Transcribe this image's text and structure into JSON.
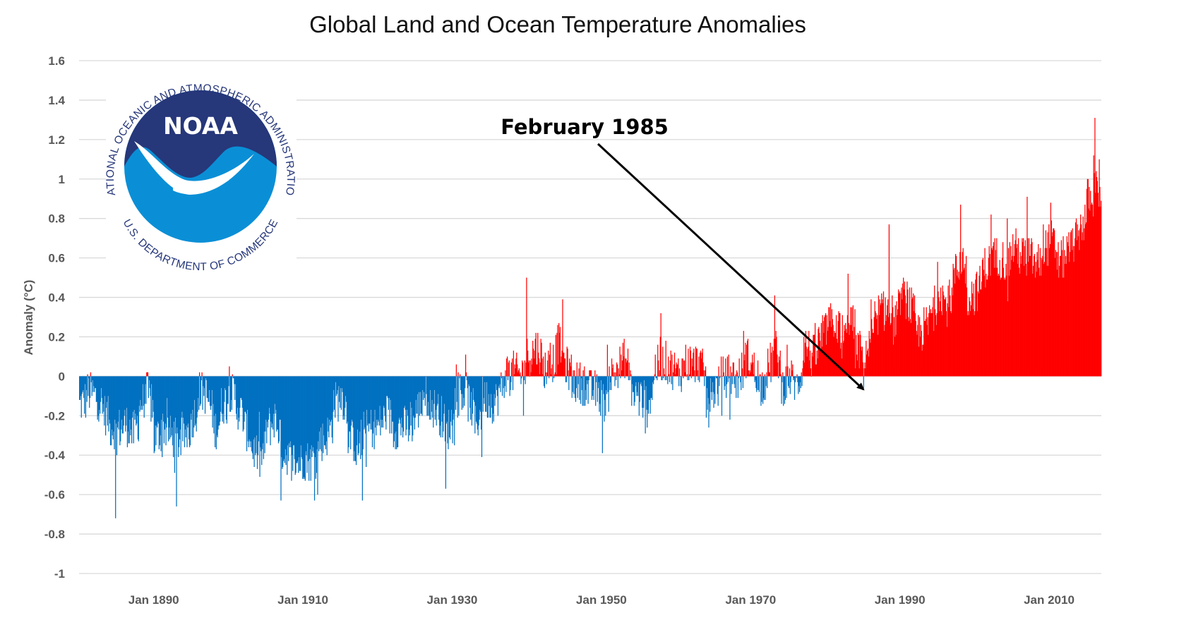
{
  "chart_data": {
    "type": "bar",
    "title": "Global Land and Ocean Temperature Anomalies",
    "ylabel": "Anomaly (°C)",
    "xlabel": "",
    "ylim": [
      -1,
      1.6
    ],
    "xlim": [
      "Jan 1880",
      "Dec 2016"
    ],
    "y_ticks": [
      "1.6",
      "1.4",
      "1.2",
      "1",
      "0.8",
      "0.6",
      "0.4",
      "0.2",
      "0",
      "-0.2",
      "-0.4",
      "-0.6",
      "-0.8",
      "-1"
    ],
    "x_ticks": [
      "Jan 1890",
      "Jan 1910",
      "Jan 1930",
      "Jan 1950",
      "Jan 1970",
      "Jan 1990",
      "Jan 2010"
    ],
    "grid": "horizontal",
    "frequency": "monthly",
    "colors": {
      "positive": "#ff0000",
      "negative": "#0070c0"
    },
    "annotation": {
      "text": "February 1985",
      "target_date": "1985-02",
      "target_value": -0.06
    },
    "series": [
      {
        "name": "",
        "monthly_start": "1880-01",
        "annual_mean_values": [
          {
            "year": 1880,
            "value": -0.15
          },
          {
            "year": 1881,
            "value": -0.08
          },
          {
            "year": 1882,
            "value": -0.1
          },
          {
            "year": 1883,
            "value": -0.17
          },
          {
            "year": 1884,
            "value": -0.26
          },
          {
            "year": 1885,
            "value": -0.27
          },
          {
            "year": 1886,
            "value": -0.24
          },
          {
            "year": 1887,
            "value": -0.3
          },
          {
            "year": 1888,
            "value": -0.15
          },
          {
            "year": 1889,
            "value": -0.07
          },
          {
            "year": 1890,
            "value": -0.32
          },
          {
            "year": 1891,
            "value": -0.25
          },
          {
            "year": 1892,
            "value": -0.3
          },
          {
            "year": 1893,
            "value": -0.33
          },
          {
            "year": 1894,
            "value": -0.3
          },
          {
            "year": 1895,
            "value": -0.22
          },
          {
            "year": 1896,
            "value": -0.08
          },
          {
            "year": 1897,
            "value": -0.1
          },
          {
            "year": 1898,
            "value": -0.28
          },
          {
            "year": 1899,
            "value": -0.15
          },
          {
            "year": 1900,
            "value": -0.07
          },
          {
            "year": 1901,
            "value": -0.15
          },
          {
            "year": 1902,
            "value": -0.25
          },
          {
            "year": 1903,
            "value": -0.36
          },
          {
            "year": 1904,
            "value": -0.44
          },
          {
            "year": 1905,
            "value": -0.27
          },
          {
            "year": 1906,
            "value": -0.2
          },
          {
            "year": 1907,
            "value": -0.38
          },
          {
            "year": 1908,
            "value": -0.41
          },
          {
            "year": 1909,
            "value": -0.44
          },
          {
            "year": 1910,
            "value": -0.42
          },
          {
            "year": 1911,
            "value": -0.43
          },
          {
            "year": 1912,
            "value": -0.33
          },
          {
            "year": 1913,
            "value": -0.32
          },
          {
            "year": 1914,
            "value": -0.14
          },
          {
            "year": 1915,
            "value": -0.08
          },
          {
            "year": 1916,
            "value": -0.3
          },
          {
            "year": 1917,
            "value": -0.38
          },
          {
            "year": 1918,
            "value": -0.28
          },
          {
            "year": 1919,
            "value": -0.26
          },
          {
            "year": 1920,
            "value": -0.25
          },
          {
            "year": 1921,
            "value": -0.18
          },
          {
            "year": 1922,
            "value": -0.27
          },
          {
            "year": 1923,
            "value": -0.25
          },
          {
            "year": 1924,
            "value": -0.26
          },
          {
            "year": 1925,
            "value": -0.19
          },
          {
            "year": 1926,
            "value": -0.08
          },
          {
            "year": 1927,
            "value": -0.16
          },
          {
            "year": 1928,
            "value": -0.17
          },
          {
            "year": 1929,
            "value": -0.31
          },
          {
            "year": 1930,
            "value": -0.12
          },
          {
            "year": 1931,
            "value": -0.07
          },
          {
            "year": 1932,
            "value": -0.12
          },
          {
            "year": 1933,
            "value": -0.25
          },
          {
            "year": 1934,
            "value": -0.1
          },
          {
            "year": 1935,
            "value": -0.14
          },
          {
            "year": 1936,
            "value": -0.1
          },
          {
            "year": 1937,
            "value": 0.02
          },
          {
            "year": 1938,
            "value": 0.02
          },
          {
            "year": 1939,
            "value": 0.0
          },
          {
            "year": 1940,
            "value": 0.1
          },
          {
            "year": 1941,
            "value": 0.16
          },
          {
            "year": 1942,
            "value": 0.04
          },
          {
            "year": 1943,
            "value": 0.05
          },
          {
            "year": 1944,
            "value": 0.18
          },
          {
            "year": 1945,
            "value": 0.06
          },
          {
            "year": 1946,
            "value": -0.03
          },
          {
            "year": 1947,
            "value": -0.03
          },
          {
            "year": 1948,
            "value": -0.07
          },
          {
            "year": 1949,
            "value": -0.07
          },
          {
            "year": 1950,
            "value": -0.15
          },
          {
            "year": 1951,
            "value": 0.0
          },
          {
            "year": 1952,
            "value": 0.04
          },
          {
            "year": 1953,
            "value": 0.1
          },
          {
            "year": 1954,
            "value": -0.09
          },
          {
            "year": 1955,
            "value": -0.11
          },
          {
            "year": 1956,
            "value": -0.16
          },
          {
            "year": 1957,
            "value": 0.04
          },
          {
            "year": 1958,
            "value": 0.08
          },
          {
            "year": 1959,
            "value": 0.05
          },
          {
            "year": 1960,
            "value": 0.01
          },
          {
            "year": 1961,
            "value": 0.07
          },
          {
            "year": 1962,
            "value": 0.06
          },
          {
            "year": 1963,
            "value": 0.08
          },
          {
            "year": 1964,
            "value": -0.12
          },
          {
            "year": 1965,
            "value": -0.07
          },
          {
            "year": 1966,
            "value": -0.01
          },
          {
            "year": 1967,
            "value": 0.01
          },
          {
            "year": 1968,
            "value": -0.03
          },
          {
            "year": 1969,
            "value": 0.11
          },
          {
            "year": 1970,
            "value": 0.06
          },
          {
            "year": 1971,
            "value": -0.06
          },
          {
            "year": 1972,
            "value": 0.02
          },
          {
            "year": 1973,
            "value": 0.16
          },
          {
            "year": 1974,
            "value": -0.05
          },
          {
            "year": 1975,
            "value": 0.0
          },
          {
            "year": 1976,
            "value": -0.07
          },
          {
            "year": 1977,
            "value": 0.17
          },
          {
            "year": 1978,
            "value": 0.09
          },
          {
            "year": 1979,
            "value": 0.17
          },
          {
            "year": 1980,
            "value": 0.25
          },
          {
            "year": 1981,
            "value": 0.3
          },
          {
            "year": 1982,
            "value": 0.15
          },
          {
            "year": 1983,
            "value": 0.31
          },
          {
            "year": 1984,
            "value": 0.14
          },
          {
            "year": 1985,
            "value": 0.12
          },
          {
            "year": 1986,
            "value": 0.19
          },
          {
            "year": 1987,
            "value": 0.32
          },
          {
            "year": 1988,
            "value": 0.35
          },
          {
            "year": 1989,
            "value": 0.26
          },
          {
            "year": 1990,
            "value": 0.41
          },
          {
            "year": 1991,
            "value": 0.38
          },
          {
            "year": 1992,
            "value": 0.22
          },
          {
            "year": 1993,
            "value": 0.24
          },
          {
            "year": 1994,
            "value": 0.31
          },
          {
            "year": 1995,
            "value": 0.45
          },
          {
            "year": 1996,
            "value": 0.34
          },
          {
            "year": 1997,
            "value": 0.5
          },
          {
            "year": 1998,
            "value": 0.63
          },
          {
            "year": 1999,
            "value": 0.41
          },
          {
            "year": 2000,
            "value": 0.42
          },
          {
            "year": 2001,
            "value": 0.54
          },
          {
            "year": 2002,
            "value": 0.6
          },
          {
            "year": 2003,
            "value": 0.61
          },
          {
            "year": 2004,
            "value": 0.57
          },
          {
            "year": 2005,
            "value": 0.66
          },
          {
            "year": 2006,
            "value": 0.61
          },
          {
            "year": 2007,
            "value": 0.62
          },
          {
            "year": 2008,
            "value": 0.55
          },
          {
            "year": 2009,
            "value": 0.64
          },
          {
            "year": 2010,
            "value": 0.7
          },
          {
            "year": 2011,
            "value": 0.58
          },
          {
            "year": 2012,
            "value": 0.62
          },
          {
            "year": 2013,
            "value": 0.67
          },
          {
            "year": 2014,
            "value": 0.74
          },
          {
            "year": 2015,
            "value": 0.9
          },
          {
            "year": 2016,
            "value": 0.94
          }
        ],
        "notable_months": [
          {
            "date": "1884-11",
            "value": -0.72
          },
          {
            "date": "1893-01",
            "value": -0.66
          },
          {
            "date": "1907-01",
            "value": -0.63
          },
          {
            "date": "1911-12",
            "value": -0.6
          },
          {
            "date": "1917-12",
            "value": -0.63
          },
          {
            "date": "1929-02",
            "value": -0.57
          },
          {
            "date": "1933-12",
            "value": -0.41
          },
          {
            "date": "1939-12",
            "value": 0.5
          },
          {
            "date": "1944-10",
            "value": 0.39
          },
          {
            "date": "1950-02",
            "value": -0.39
          },
          {
            "date": "1957-12",
            "value": 0.32
          },
          {
            "date": "1973-03",
            "value": 0.41
          },
          {
            "date": "1983-01",
            "value": 0.52
          },
          {
            "date": "1985-02",
            "value": -0.06
          },
          {
            "date": "1988-07",
            "value": 0.77
          },
          {
            "date": "1998-02",
            "value": 0.87
          },
          {
            "date": "2002-03",
            "value": 0.82
          },
          {
            "date": "2007-01",
            "value": 0.91
          },
          {
            "date": "2010-03",
            "value": 0.88
          },
          {
            "date": "2015-12",
            "value": 1.12
          },
          {
            "date": "2016-02",
            "value": 1.31
          },
          {
            "date": "2016-09",
            "value": 1.1
          }
        ]
      }
    ]
  },
  "logo": {
    "wordmark": "NOAA",
    "ring_top": "NATIONAL OCEANIC AND ATMOSPHERIC ADMINISTRATION",
    "ring_bottom": "U.S. DEPARTMENT OF COMMERCE",
    "colors": {
      "navy": "#26377a",
      "blue": "#0a8fd6",
      "white": "#ffffff"
    }
  }
}
